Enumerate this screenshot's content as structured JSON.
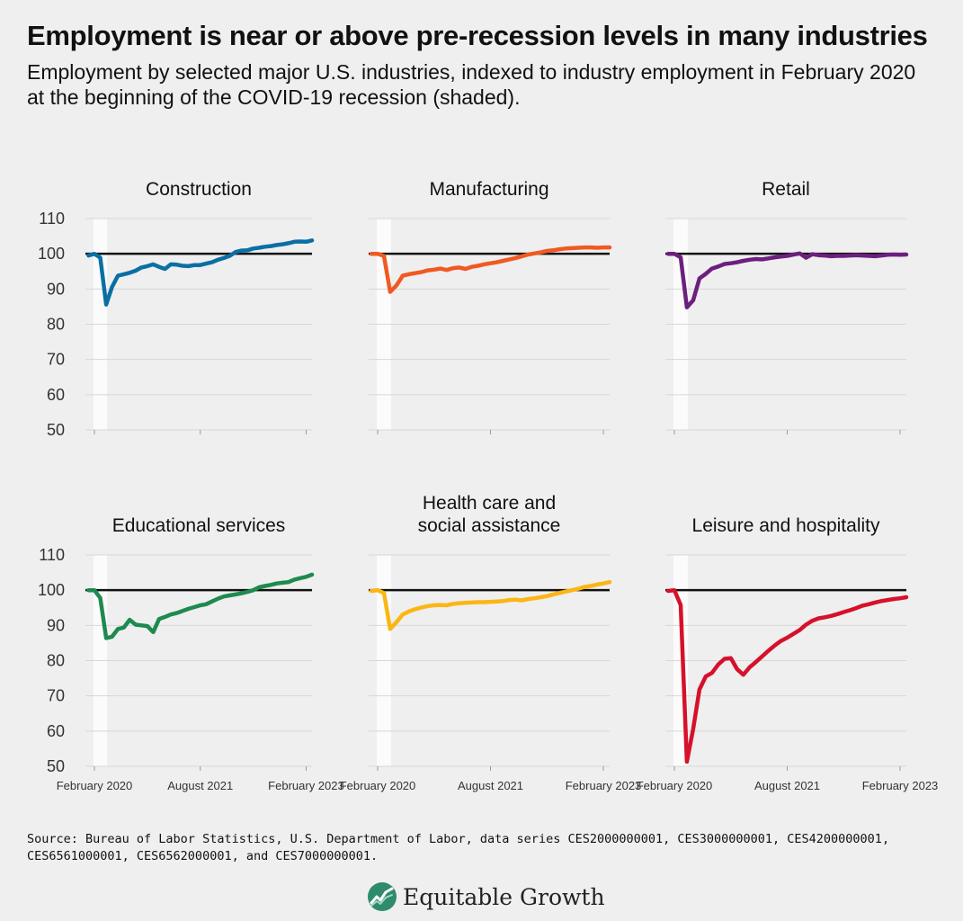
{
  "title": "Employment is near or above pre-recession levels in many industries",
  "subtitle": "Employment by selected major U.S. industries, indexed to industry employment in February 2020 at the beginning of the COVID-19 recession (shaded).",
  "source": "Source: Bureau of Labor Statistics, U.S. Department of Labor, data series CES2000000001, CES3000000001, CES4200000001, CES6561000001, CES6562000001, and CES7000000001.",
  "logo": {
    "text": "Equitable Growth",
    "icon": "growth-chart-icon"
  },
  "chart_data": [
    {
      "type": "line",
      "title": "Construction",
      "color": "#0b6fa4",
      "xlim": [
        "2020-02",
        "2023-03"
      ],
      "ylim": [
        50,
        110
      ],
      "reference_line": 100,
      "recession_shading": [
        "2020-02",
        "2020-04"
      ],
      "yticks": [
        "50",
        "60",
        "70",
        "80",
        "90",
        "100",
        "110"
      ],
      "xticks": [
        "February 2020",
        "August 2021",
        "February 2023"
      ],
      "grid": true,
      "x": [
        "2020-01",
        "2020-02",
        "2020-03",
        "2020-04",
        "2020-05",
        "2020-06",
        "2020-07",
        "2020-08",
        "2020-09",
        "2020-10",
        "2020-11",
        "2020-12",
        "2021-01",
        "2021-02",
        "2021-03",
        "2021-04",
        "2021-05",
        "2021-06",
        "2021-07",
        "2021-08",
        "2021-09",
        "2021-10",
        "2021-11",
        "2021-12",
        "2022-01",
        "2022-02",
        "2022-03",
        "2022-04",
        "2022-05",
        "2022-06",
        "2022-07",
        "2022-08",
        "2022-09",
        "2022-10",
        "2022-11",
        "2022-12",
        "2023-01",
        "2023-02",
        "2023-03"
      ],
      "values": [
        99.5,
        100,
        98.9,
        85.6,
        90.6,
        93.8,
        94.2,
        94.6,
        95.2,
        96.1,
        96.5,
        97.0,
        96.3,
        95.7,
        97.0,
        96.9,
        96.6,
        96.5,
        96.8,
        96.8,
        97.2,
        97.6,
        98.3,
        98.8,
        99.4,
        100.5,
        100.9,
        101.0,
        101.5,
        101.7,
        102.0,
        102.2,
        102.5,
        102.7,
        103.0,
        103.4,
        103.5,
        103.4,
        103.8
      ]
    },
    {
      "type": "line",
      "title": "Manufacturing",
      "color": "#f05a22",
      "xlim": [
        "2020-02",
        "2023-03"
      ],
      "ylim": [
        50,
        110
      ],
      "reference_line": 100,
      "recession_shading": [
        "2020-02",
        "2020-04"
      ],
      "yticks": [
        "50",
        "60",
        "70",
        "80",
        "90",
        "100",
        "110"
      ],
      "xticks": [
        "February 2020",
        "August 2021",
        "February 2023"
      ],
      "grid": true,
      "x": [
        "2020-01",
        "2020-02",
        "2020-03",
        "2020-04",
        "2020-05",
        "2020-06",
        "2020-07",
        "2020-08",
        "2020-09",
        "2020-10",
        "2020-11",
        "2020-12",
        "2021-01",
        "2021-02",
        "2021-03",
        "2021-04",
        "2021-05",
        "2021-06",
        "2021-07",
        "2021-08",
        "2021-09",
        "2021-10",
        "2021-11",
        "2021-12",
        "2022-01",
        "2022-02",
        "2022-03",
        "2022-04",
        "2022-05",
        "2022-06",
        "2022-07",
        "2022-08",
        "2022-09",
        "2022-10",
        "2022-11",
        "2022-12",
        "2023-01",
        "2023-02",
        "2023-03"
      ],
      "values": [
        100,
        100,
        99.4,
        89.2,
        91.0,
        93.8,
        94.2,
        94.5,
        94.8,
        95.3,
        95.5,
        95.8,
        95.4,
        95.9,
        96.1,
        95.7,
        96.3,
        96.6,
        97.0,
        97.3,
        97.6,
        98.0,
        98.4,
        98.8,
        99.3,
        99.8,
        100.1,
        100.4,
        100.8,
        101.0,
        101.3,
        101.5,
        101.6,
        101.7,
        101.8,
        101.8,
        101.7,
        101.8,
        101.8
      ]
    },
    {
      "type": "line",
      "title": "Retail",
      "color": "#6d1f7e",
      "xlim": [
        "2020-02",
        "2023-03"
      ],
      "ylim": [
        50,
        110
      ],
      "reference_line": 100,
      "recession_shading": [
        "2020-02",
        "2020-04"
      ],
      "yticks": [
        "50",
        "60",
        "70",
        "80",
        "90",
        "100",
        "110"
      ],
      "xticks": [
        "February 2020",
        "August 2021",
        "February 2023"
      ],
      "grid": true,
      "x": [
        "2020-01",
        "2020-02",
        "2020-03",
        "2020-04",
        "2020-05",
        "2020-06",
        "2020-07",
        "2020-08",
        "2020-09",
        "2020-10",
        "2020-11",
        "2020-12",
        "2021-01",
        "2021-02",
        "2021-03",
        "2021-04",
        "2021-05",
        "2021-06",
        "2021-07",
        "2021-08",
        "2021-09",
        "2021-10",
        "2021-11",
        "2021-12",
        "2022-01",
        "2022-02",
        "2022-03",
        "2022-04",
        "2022-05",
        "2022-06",
        "2022-07",
        "2022-08",
        "2022-09",
        "2022-10",
        "2022-11",
        "2022-12",
        "2023-01",
        "2023-02",
        "2023-03"
      ],
      "values": [
        100,
        100,
        99.0,
        84.8,
        86.8,
        93.0,
        94.3,
        95.8,
        96.4,
        97.1,
        97.3,
        97.6,
        98.0,
        98.3,
        98.5,
        98.4,
        98.7,
        99.0,
        99.2,
        99.4,
        99.8,
        100.1,
        98.9,
        99.9,
        99.6,
        99.5,
        99.3,
        99.4,
        99.4,
        99.5,
        99.6,
        99.5,
        99.4,
        99.3,
        99.5,
        99.7,
        99.8,
        99.7,
        99.8
      ]
    },
    {
      "type": "line",
      "title": "Educational services",
      "color": "#1d8a4f",
      "xlim": [
        "2020-02",
        "2023-03"
      ],
      "ylim": [
        50,
        110
      ],
      "reference_line": 100,
      "recession_shading": [
        "2020-02",
        "2020-04"
      ],
      "yticks": [
        "50",
        "60",
        "70",
        "80",
        "90",
        "100",
        "110"
      ],
      "xticks": [
        "February 2020",
        "August 2021",
        "February 2023"
      ],
      "grid": true,
      "x": [
        "2020-01",
        "2020-02",
        "2020-03",
        "2020-04",
        "2020-05",
        "2020-06",
        "2020-07",
        "2020-08",
        "2020-09",
        "2020-10",
        "2020-11",
        "2020-12",
        "2021-01",
        "2021-02",
        "2021-03",
        "2021-04",
        "2021-05",
        "2021-06",
        "2021-07",
        "2021-08",
        "2021-09",
        "2021-10",
        "2021-11",
        "2021-12",
        "2022-01",
        "2022-02",
        "2022-03",
        "2022-04",
        "2022-05",
        "2022-06",
        "2022-07",
        "2022-08",
        "2022-09",
        "2022-10",
        "2022-11",
        "2022-12",
        "2023-01",
        "2023-02",
        "2023-03"
      ],
      "values": [
        100,
        100,
        97.8,
        86.4,
        86.8,
        89.0,
        89.4,
        91.6,
        90.2,
        90.0,
        89.8,
        88.1,
        91.8,
        92.4,
        93.1,
        93.5,
        94.1,
        94.7,
        95.2,
        95.7,
        96.0,
        96.8,
        97.6,
        98.2,
        98.5,
        98.8,
        99.1,
        99.5,
        100.0,
        100.8,
        101.2,
        101.5,
        101.9,
        102.1,
        102.3,
        103.0,
        103.4,
        103.8,
        104.4
      ]
    },
    {
      "type": "line",
      "title": "Health care and social assistance",
      "color": "#fbb614",
      "xlim": [
        "2020-02",
        "2023-03"
      ],
      "ylim": [
        50,
        110
      ],
      "reference_line": 100,
      "recession_shading": [
        "2020-02",
        "2020-04"
      ],
      "yticks": [
        "50",
        "60",
        "70",
        "80",
        "90",
        "100",
        "110"
      ],
      "xticks": [
        "February 2020",
        "August 2021",
        "February 2023"
      ],
      "grid": true,
      "x": [
        "2020-01",
        "2020-02",
        "2020-03",
        "2020-04",
        "2020-05",
        "2020-06",
        "2020-07",
        "2020-08",
        "2020-09",
        "2020-10",
        "2020-11",
        "2020-12",
        "2021-01",
        "2021-02",
        "2021-03",
        "2021-04",
        "2021-05",
        "2021-06",
        "2021-07",
        "2021-08",
        "2021-09",
        "2021-10",
        "2021-11",
        "2021-12",
        "2022-01",
        "2022-02",
        "2022-03",
        "2022-04",
        "2022-05",
        "2022-06",
        "2022-07",
        "2022-08",
        "2022-09",
        "2022-10",
        "2022-11",
        "2022-12",
        "2023-01",
        "2023-02",
        "2023-03"
      ],
      "values": [
        99.8,
        100,
        99.2,
        89.0,
        90.9,
        93.1,
        94.0,
        94.6,
        95.1,
        95.5,
        95.7,
        95.8,
        95.7,
        96.1,
        96.3,
        96.4,
        96.5,
        96.6,
        96.6,
        96.7,
        96.8,
        96.9,
        97.2,
        97.3,
        97.1,
        97.5,
        97.7,
        98.0,
        98.3,
        98.8,
        99.2,
        99.6,
        100.0,
        100.4,
        100.9,
        101.2,
        101.6,
        101.9,
        102.3
      ]
    },
    {
      "type": "line",
      "title": "Leisure and hospitality",
      "color": "#d6112b",
      "xlim": [
        "2020-02",
        "2023-03"
      ],
      "ylim": [
        50,
        110
      ],
      "reference_line": 100,
      "recession_shading": [
        "2020-02",
        "2020-04"
      ],
      "yticks": [
        "50",
        "60",
        "70",
        "80",
        "90",
        "100",
        "110"
      ],
      "xticks": [
        "February 2020",
        "August 2021",
        "February 2023"
      ],
      "grid": true,
      "x": [
        "2020-01",
        "2020-02",
        "2020-03",
        "2020-04",
        "2020-05",
        "2020-06",
        "2020-07",
        "2020-08",
        "2020-09",
        "2020-10",
        "2020-11",
        "2020-12",
        "2021-01",
        "2021-02",
        "2021-03",
        "2021-04",
        "2021-05",
        "2021-06",
        "2021-07",
        "2021-08",
        "2021-09",
        "2021-10",
        "2021-11",
        "2021-12",
        "2022-01",
        "2022-02",
        "2022-03",
        "2022-04",
        "2022-05",
        "2022-06",
        "2022-07",
        "2022-08",
        "2022-09",
        "2022-10",
        "2022-11",
        "2022-12",
        "2023-01",
        "2023-02",
        "2023-03"
      ],
      "values": [
        99.8,
        100,
        95.8,
        51.3,
        60.6,
        71.8,
        75.5,
        76.5,
        78.9,
        80.5,
        80.7,
        77.6,
        76.0,
        78.1,
        79.6,
        81.2,
        82.8,
        84.3,
        85.6,
        86.5,
        87.6,
        88.7,
        90.2,
        91.3,
        92.0,
        92.3,
        92.7,
        93.2,
        93.8,
        94.3,
        94.9,
        95.6,
        96.0,
        96.5,
        96.9,
        97.2,
        97.5,
        97.7,
        98.0
      ]
    }
  ]
}
